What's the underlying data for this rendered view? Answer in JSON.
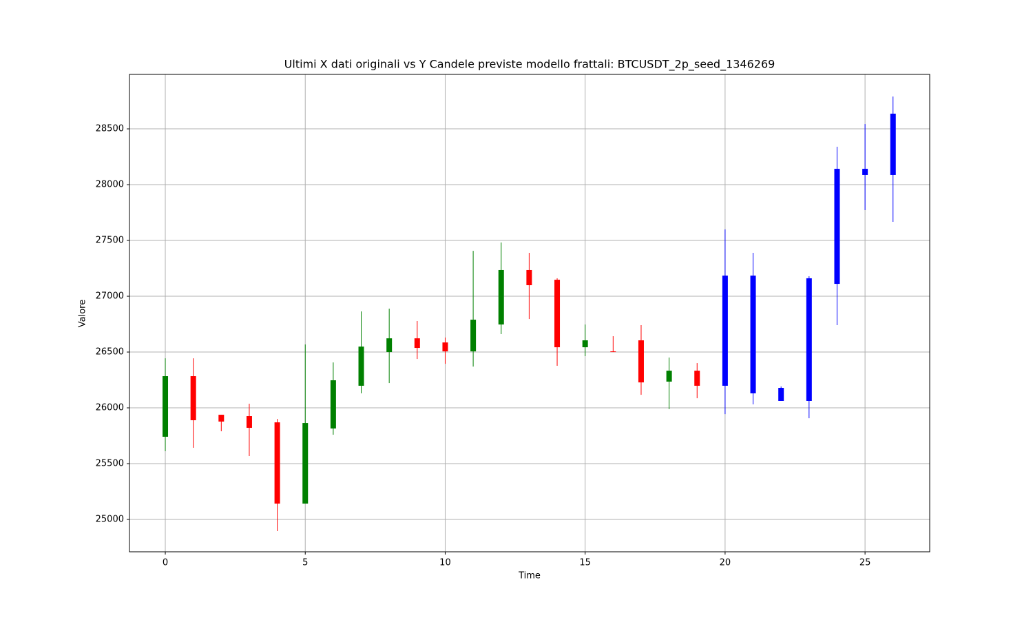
{
  "chart_data": {
    "type": "candlestick",
    "title": "Ultimi X dati originali vs Y Candele previste modello frattali: BTCUSDT_2p_seed_1346269",
    "x_label": "Time",
    "y_label": "Valore",
    "x": [
      0,
      1,
      2,
      3,
      4,
      5,
      6,
      7,
      8,
      9,
      10,
      11,
      12,
      13,
      14,
      15,
      16,
      17,
      18,
      19,
      20,
      21,
      22,
      23,
      24,
      25,
      26
    ],
    "open": [
      25741,
      26284,
      25938,
      25926,
      25870,
      25142,
      25815,
      26198,
      26500,
      26623,
      26586,
      26506,
      26747,
      27235,
      27148,
      26543,
      26506,
      26605,
      26235,
      26333,
      26198,
      27185,
      26179,
      26062,
      27111,
      28087,
      28087
    ],
    "high": [
      26444,
      26444,
      25938,
      26037,
      25901,
      26568,
      26407,
      26864,
      26889,
      26778,
      26630,
      27407,
      27482,
      27389,
      27161,
      26747,
      26642,
      26741,
      26451,
      26401,
      27599,
      27389,
      26191,
      27179,
      28340,
      28543,
      28790
    ],
    "low": [
      25611,
      25642,
      25790,
      25568,
      24895,
      25142,
      25759,
      26130,
      26222,
      26438,
      26395,
      26370,
      26661,
      26796,
      26377,
      26463,
      26500,
      26117,
      25988,
      26086,
      25944,
      26031,
      26062,
      25907,
      26741,
      27772,
      27667
    ],
    "close": [
      26284,
      25889,
      25877,
      25821,
      25142,
      25864,
      26247,
      26549,
      26623,
      26537,
      26506,
      26790,
      27235,
      27099,
      26543,
      26605,
      26500,
      26228,
      26333,
      26198,
      27185,
      26130,
      26062,
      27161,
      28142,
      28142,
      28636
    ],
    "colors": [
      "green",
      "red",
      "red",
      "red",
      "red",
      "green",
      "green",
      "green",
      "green",
      "red",
      "red",
      "green",
      "green",
      "red",
      "red",
      "green",
      "red",
      "red",
      "green",
      "red",
      "blue",
      "blue",
      "blue",
      "blue",
      "blue",
      "blue",
      "blue"
    ],
    "xlim": [
      -1.28,
      27.31
    ],
    "ylim": [
      24710,
      28988
    ],
    "xticks": [
      0,
      5,
      10,
      15,
      20,
      25
    ],
    "yticks": [
      25000,
      25500,
      26000,
      26500,
      27000,
      27500,
      28000,
      28500
    ],
    "grid": true
  }
}
